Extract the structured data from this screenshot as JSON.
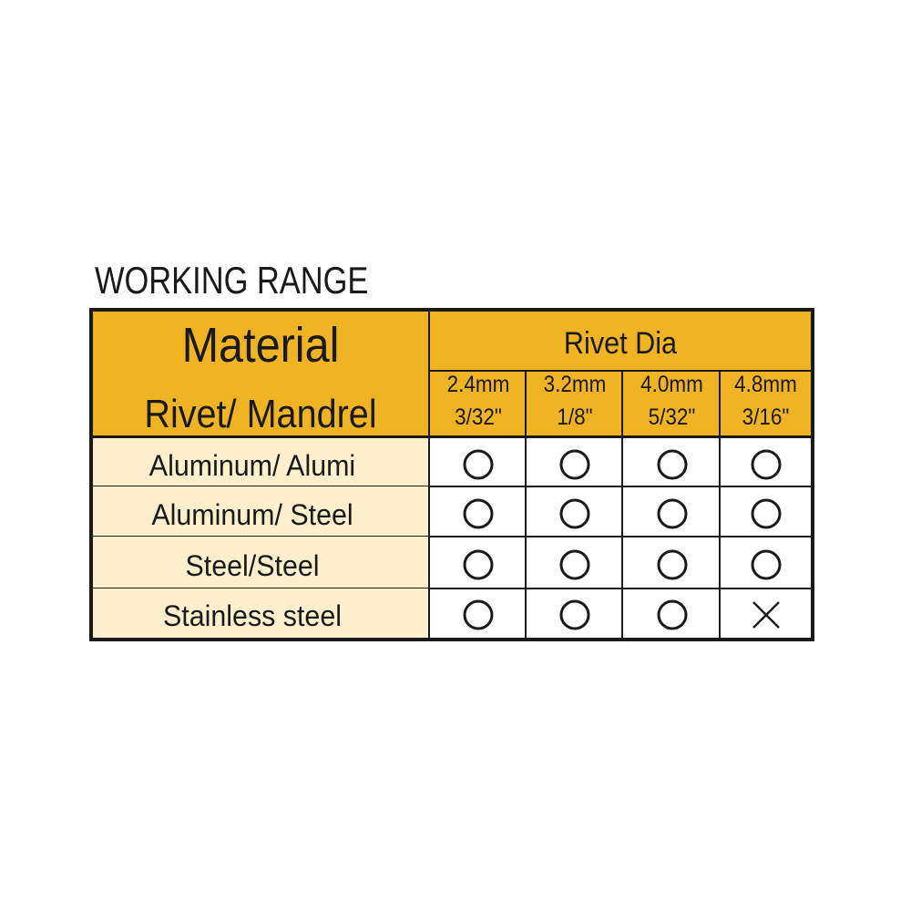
{
  "title": "WORKING RANGE",
  "header": {
    "material": "Material",
    "rivet_mandrel": "Rivet/ Mandrel",
    "rivet_dia": "Rivet Dia",
    "columns": [
      {
        "mm": "2.4mm",
        "inch": "3/32\""
      },
      {
        "mm": "3.2mm",
        "inch": "1/8\""
      },
      {
        "mm": "4.0mm",
        "inch": "5/32\""
      },
      {
        "mm": "4.8mm",
        "inch": "3/16\""
      }
    ]
  },
  "rows": [
    {
      "material": "Aluminum/ Alumi",
      "marks": [
        "circle",
        "circle",
        "circle",
        "circle"
      ]
    },
    {
      "material": "Aluminum/ Steel",
      "marks": [
        "circle",
        "circle",
        "circle",
        "circle"
      ]
    },
    {
      "material": "Steel/Steel",
      "marks": [
        "circle",
        "circle",
        "circle",
        "circle"
      ]
    },
    {
      "material": "Stainless steel",
      "marks": [
        "circle",
        "circle",
        "circle",
        "cross"
      ]
    }
  ],
  "colors": {
    "header": "#F0B323",
    "material_cells": "#FEF0CD",
    "lines": "#1a1a1a"
  }
}
